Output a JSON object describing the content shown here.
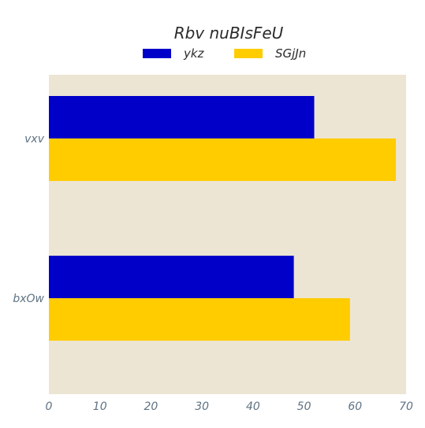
{
  "chart_data": {
    "type": "bar",
    "orientation": "horizontal",
    "title": "Rbv nuBIsFeU",
    "categories": [
      "vxv",
      "bxOw"
    ],
    "series": [
      {
        "name": "ykz",
        "values": [
          52,
          48
        ],
        "color": "#0000c8"
      },
      {
        "name": "SGjJn",
        "values": [
          68,
          59
        ],
        "color": "#ffcc00"
      }
    ],
    "xlim": [
      0,
      70
    ],
    "xticks": [
      0,
      10,
      20,
      30,
      40,
      50,
      60,
      70
    ],
    "xlabel": "",
    "ylabel": "",
    "grid": false,
    "legend_position": "top-center",
    "plot_background": "#ede5d3"
  }
}
